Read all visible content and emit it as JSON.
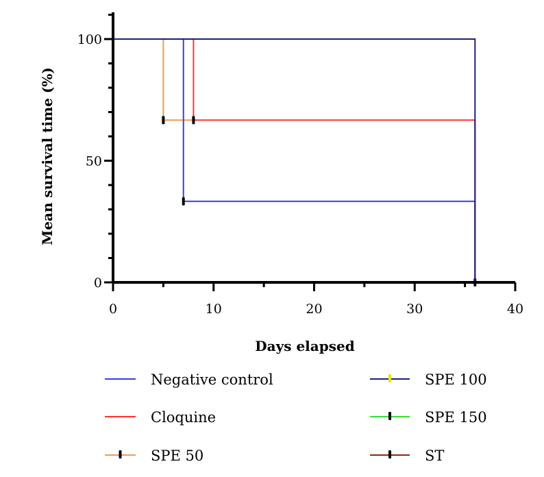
{
  "chart_data": {
    "type": "line",
    "subtype": "kaplan-meier-step",
    "title": "",
    "xlabel": "Days elapsed",
    "ylabel": "Mean survival time (%)",
    "xlim": [
      0,
      40
    ],
    "ylim": [
      0,
      100
    ],
    "x_ticks": [
      0,
      10,
      20,
      30,
      40
    ],
    "x_tick_labels": [
      "0",
      "10",
      "20",
      "30",
      "40"
    ],
    "y_ticks": [
      0,
      50,
      100
    ],
    "y_tick_labels": [
      "0",
      "50",
      "100"
    ],
    "grid": false,
    "legend_position": "bottom",
    "series": [
      {
        "name": "Negative control",
        "color": "#3a3af0",
        "x": [
          0,
          7,
          7,
          36,
          36
        ],
        "y": [
          100,
          100,
          33.3,
          33.3,
          0
        ],
        "censor_marks": [
          {
            "x": 7,
            "y": 33.3
          },
          {
            "x": 36,
            "y": 0
          }
        ]
      },
      {
        "name": "Cloquine",
        "color": "#ff3030",
        "x": [
          0,
          8,
          8,
          36,
          36
        ],
        "y": [
          100,
          100,
          66.7,
          66.7,
          0
        ],
        "censor_marks": [
          {
            "x": 8,
            "y": 66.7
          }
        ]
      },
      {
        "name": "SPE 50",
        "color": "#f59a4b",
        "x": [
          0,
          5,
          5,
          8
        ],
        "y": [
          100,
          100,
          66.7,
          66.7
        ],
        "censor_marks": [
          {
            "x": 5,
            "y": 66.7
          }
        ]
      },
      {
        "name": "SPE 100",
        "color": "#1b1f7a",
        "marker_color": "#e8e800",
        "x": [
          0,
          36,
          36
        ],
        "y": [
          100,
          100,
          0
        ],
        "censor_marks": []
      },
      {
        "name": "SPE 150",
        "color": "#33e033",
        "x": [],
        "y": [],
        "censor_marks": []
      },
      {
        "name": "ST",
        "color": "#8a2a0a",
        "x": [],
        "y": [],
        "censor_marks": []
      }
    ]
  }
}
